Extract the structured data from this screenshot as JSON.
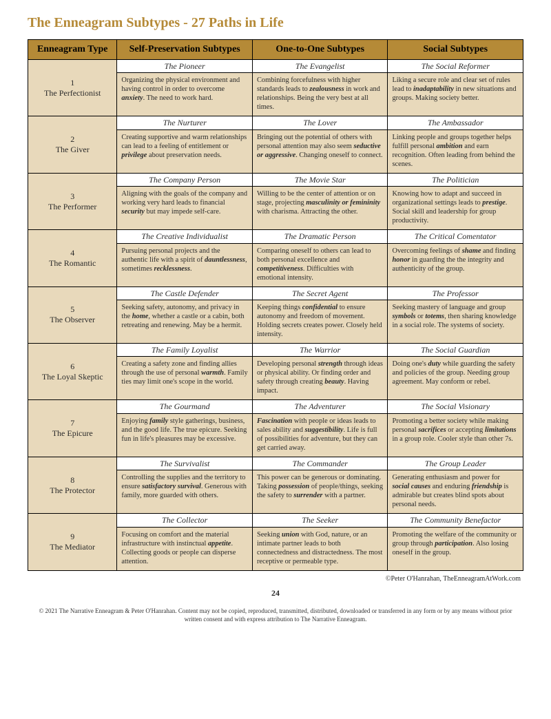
{
  "title": "The Enneagram Subtypes - 27 Paths in Life",
  "colors": {
    "accent": "#b58a37",
    "cell_bg": "#e8d9bb",
    "border": "#000000"
  },
  "headers": {
    "type": "Enneagram Type",
    "sp": "Self-Preservation Subtypes",
    "oto": "One-to-One Subtypes",
    "soc": "Social Subtypes"
  },
  "rows": [
    {
      "num": "1",
      "name": "The Perfectionist",
      "sp_t": "The Pioneer",
      "sp_d": "Organizing the physical environment and having control in order to overcome <b><i>anxiety</i></b>. The need to work hard.",
      "oto_t": "The Evangelist",
      "oto_d": "Combining forcefulness with higher standards leads to <b><i>zealousness</i></b> in work and relationships. Being the very best at all times.",
      "soc_t": "The Social Reformer",
      "soc_d": "Liking a secure role and clear set of rules lead to <b><i>inadaptability</i></b> in new situations and groups. Making society better."
    },
    {
      "num": "2",
      "name": "The Giver",
      "sp_t": "The Nurturer",
      "sp_d": "Creating supportive and warm relationships can lead to a feeling of entitlement or <b><i>privilege</i></b> about preservation needs.",
      "oto_t": "The Lover",
      "oto_d": "Bringing out the potential of others with personal attention may also seem <b><i>seductive or aggressive</i></b>. Changing oneself to connect.",
      "soc_t": "The Ambassador",
      "soc_d": "Linking people and groups together helps fulfill personal <b><i>ambition</i></b> and earn recognition. Often leading from behind the scenes."
    },
    {
      "num": "3",
      "name": "The Performer",
      "sp_t": "The Company Person",
      "sp_d": "Aligning with the goals of the company and working very hard leads to financial <b><i>security</i></b> but may impede self-care.",
      "oto_t": "The Movie Star",
      "oto_d": "Willing to be the center of attention or on stage, projecting <b><i>masculinity or femininity</i></b> with charisma. Attracting the other.",
      "soc_t": "The Politician",
      "soc_d": "Knowing how to adapt and succeed in organizational settings leads to <b><i>prestige</i></b>. Social skill and leadership for group productivity."
    },
    {
      "num": "4",
      "name": "The Romantic",
      "sp_t": "The Creative Individualist",
      "sp_d": "Pursuing personal projects and the authentic life with a spirit of <b><i>dauntlessness</i></b>, sometimes <b><i>recklessness</i></b>.",
      "oto_t": "The Dramatic Person",
      "oto_d": "Comparing oneself to others can lead to both personal excellence and <b><i>competitiveness</i></b>. Difficulties with emotional intensity.",
      "soc_t": "The Critical Comentator",
      "soc_d": "Overcoming feelings of <b><i>shame</i></b> and finding <b><i>honor</i></b> in guarding the the integrity and authenticity of the group."
    },
    {
      "num": "5",
      "name": "The Observer",
      "sp_t": "The Castle Defender",
      "sp_d": "Seeking safety, autonomy, and privacy in the <b><i>home</i></b>, whether a castle or a cabin, both retreating and renewing. May be a hermit.",
      "oto_t": "The Secret Agent",
      "oto_d": "Keeping things <b><i>confidential</i></b> to ensure autonomy and freedom of movement. Holding secrets creates power. Closely held intensity.",
      "soc_t": "The Professor",
      "soc_d": "Seeking mastery of language and group <b><i>symbols</i></b> or <b><i>totems</i></b>, then sharing knowledge in a social role. The systems of society."
    },
    {
      "num": "6",
      "name": "The Loyal Skeptic",
      "sp_t": "The Family Loyalist",
      "sp_d": "Creating a safety zone and finding allies through the use of personal <b><i>warmth</i></b>. Family ties may limit one's scope in the world.",
      "oto_t": "The Warrior",
      "oto_d": "Developing personal <b><i>strength</i></b> through ideas or physical ability. Or finding order and safety through creating <b><i>beauty</i></b>. Having impact.",
      "soc_t": "The Social Guardian",
      "soc_d": "Doing one's <b><i>duty</i></b> while guarding the safety and policies of the group. Needing group agreement. May conform or rebel."
    },
    {
      "num": "7",
      "name": "The Epicure",
      "sp_t": "The Gourmand",
      "sp_d": "Enjoying <b><i>family</i></b> style gatherings, business, and the good life. The true epicure. Seeking fun in life's pleasures may be excessive.",
      "oto_t": "The Adventurer",
      "oto_d": "<b><i>Fascination</i></b> with people or ideas leads to sales ability and <b><i>suggestibility</i></b>. Life is full of possibilities for adventure, but they can get carried away.",
      "soc_t": "The Social Visionary",
      "soc_d": "Promoting a better society while making personal <b><i>sacrifices</i></b> or accepting <b><i>limitations</i></b> in a group role. Cooler style than other 7s."
    },
    {
      "num": "8",
      "name": "The Protector",
      "sp_t": "The Survivalist",
      "sp_d": "Controlling the supplies and the territory to ensure <b><i>satisfactory survival</i></b>. Generous with family, more guarded with others.",
      "oto_t": "The Commander",
      "oto_d": "This power can be generous or dominating. Taking <b><i>possession</i></b> of people/things, seeking the safety to <b><i>surrender</i></b> with a partner.",
      "soc_t": "The Group Leader",
      "soc_d": "Generating enthusiasm and power for <b><i>social causes</i></b> and enduring <b><i>friendship</i></b> is admirable but creates blind spots about personal needs."
    },
    {
      "num": "9",
      "name": "The Mediator",
      "sp_t": "The Collector",
      "sp_d": "Focusing on comfort and the material infrastructure with instinctual <b><i>appetite</i></b>. Collecting goods or people can disperse attention.",
      "oto_t": "The Seeker",
      "oto_d": "Seeking <b><i>union</i></b> with God, nature, or an intimate partner leads to both connectedness and distractedness. The most receptive or permeable type.",
      "soc_t": "The Community Benefactor",
      "soc_d": "Promoting the welfare of the community or group through <b><i>participation</i></b>. Also losing oneself in the group."
    }
  ],
  "copyright_right": "©Peter O'Hanrahan, TheEnneagramAtWork.com",
  "page_number": "24",
  "footer": "© 2021 The Narrative Enneagram & Peter O'Hanrahan. Content may not be copied, reproduced, transmitted, distributed, downloaded or transferred in any form or by any means without prior written consent and with express attribution to The Narrative Enneagram."
}
